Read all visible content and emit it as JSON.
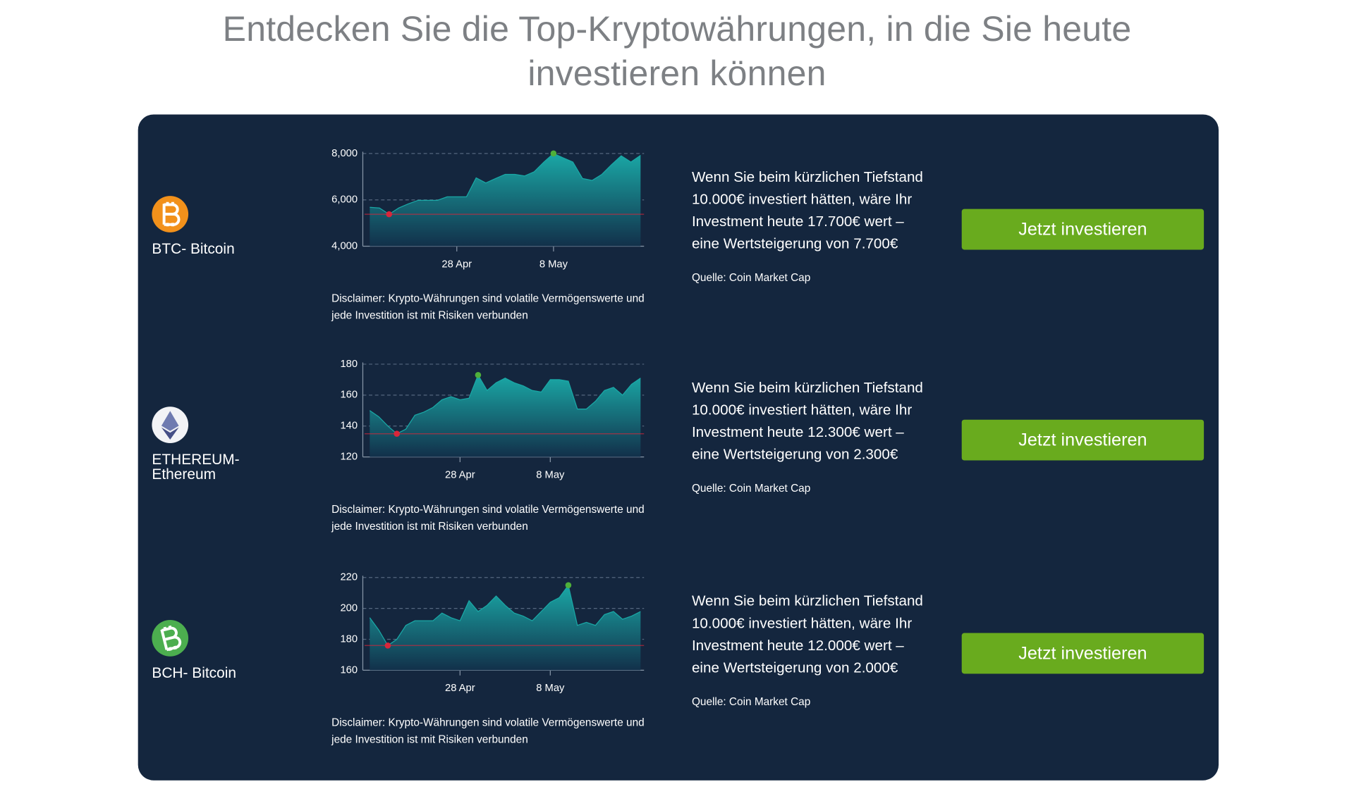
{
  "title": "Entdecken Sie die Top-Kryptowährungen, in die Sie heute investieren können",
  "rows": [
    {
      "name": [
        "BTC- Bitcoin"
      ],
      "text": [
        "Wenn Sie beim kürzlichen Tiefstand",
        "10.000€ investiert hätten, wäre Ihr",
        "Investment heute 17.700€ wert –",
        "eine Wertsteigerung von 7.700€"
      ],
      "source": "Quelle: Coin Market Cap",
      "button": "Jetzt investieren",
      "disclaimer": [
        "Disclaimer: Krypto-Währungen sind volatile Vermögenswerte und",
        "jede Investition ist mit Risiken verbunden"
      ]
    },
    {
      "name": [
        "ETHEREUM-",
        "Ethereum"
      ],
      "text": [
        "Wenn Sie beim kürzlichen Tiefstand",
        "10.000€ investiert hätten, wäre Ihr",
        "Investment heute 12.300€ wert –",
        "eine Wertsteigerung von 2.300€"
      ],
      "source": "Quelle: Coin Market Cap",
      "button": "Jetzt investieren",
      "disclaimer": [
        "Disclaimer: Krypto-Währungen sind volatile Vermögenswerte und",
        "jede Investition ist mit Risiken verbunden"
      ]
    },
    {
      "name": [
        "BCH- Bitcoin"
      ],
      "text": [
        "Wenn Sie beim kürzlichen Tiefstand",
        "10.000€ investiert hätten, wäre Ihr",
        "Investment heute 12.000€ wert –",
        "eine Wertsteigerung von 2.000€"
      ],
      "source": "Quelle: Coin Market Cap",
      "button": "Jetzt investieren",
      "disclaimer": [
        "Disclaimer: Krypto-Währungen sind volatile Vermögenswerte und",
        "jede Investition ist mit Risiken verbunden"
      ]
    }
  ],
  "chart_data": [
    {
      "type": "area",
      "color": "#1aa8a6",
      "min_marker_color": "#d9263a",
      "max_marker_color": "#4fb03a",
      "categories": [
        null,
        null,
        null,
        null,
        null,
        null,
        null,
        null,
        null,
        "28 Apr",
        null,
        null,
        null,
        null,
        null,
        null,
        null,
        null,
        null,
        "8 May",
        null,
        null,
        null,
        null,
        null,
        null,
        null,
        null,
        null
      ],
      "values": [
        5680,
        5650,
        5380,
        5650,
        5830,
        5980,
        5980,
        5980,
        6130,
        6130,
        6130,
        6950,
        6730,
        6920,
        7100,
        7100,
        7030,
        7210,
        7630,
        8000,
        7810,
        7630,
        6920,
        6840,
        7100,
        7520,
        7900,
        7630,
        7920
      ],
      "ylim": [
        4000,
        8000
      ],
      "yticks": [
        {
          "value": 4000,
          "label": "4,000"
        },
        {
          "value": 6000,
          "label": "6,000"
        },
        {
          "value": 8000,
          "label": "8,000"
        }
      ],
      "grid": true
    },
    {
      "type": "area",
      "color": "#1aa8a6",
      "min_marker_color": "#d9263a",
      "max_marker_color": "#4fb03a",
      "categories": [
        null,
        null,
        null,
        null,
        null,
        null,
        null,
        null,
        null,
        null,
        "28 Apr",
        null,
        null,
        null,
        null,
        null,
        null,
        null,
        null,
        null,
        "8 May",
        null,
        null,
        null,
        null,
        null,
        null,
        null,
        null,
        null,
        null
      ],
      "values": [
        150,
        146,
        140,
        135,
        138,
        147,
        149,
        152,
        157,
        159,
        157,
        158,
        173,
        163,
        168,
        171,
        168,
        166,
        163,
        162,
        170,
        170,
        169,
        151,
        151,
        156,
        163,
        165,
        160,
        167,
        171
      ],
      "ylim": [
        120,
        180
      ],
      "yticks": [
        120,
        140,
        160,
        180
      ],
      "grid": true
    },
    {
      "type": "area",
      "color": "#1aa8a6",
      "min_marker_color": "#d9263a",
      "max_marker_color": "#4fb03a",
      "categories": [
        null,
        null,
        null,
        null,
        null,
        null,
        null,
        null,
        null,
        null,
        "28 Apr",
        null,
        null,
        null,
        null,
        null,
        null,
        null,
        null,
        null,
        "8 May",
        null,
        null,
        null,
        null,
        null,
        null,
        null,
        null,
        null,
        null
      ],
      "values": [
        194,
        186,
        176,
        180,
        189,
        192,
        192,
        192,
        197,
        194,
        192,
        205,
        198,
        202,
        208,
        202,
        197,
        195,
        192,
        198,
        204,
        207,
        215,
        189,
        191,
        189,
        196,
        198,
        193,
        195,
        198
      ],
      "ylim": [
        160,
        220
      ],
      "yticks": [
        160,
        180,
        200,
        220
      ],
      "grid": true
    }
  ]
}
